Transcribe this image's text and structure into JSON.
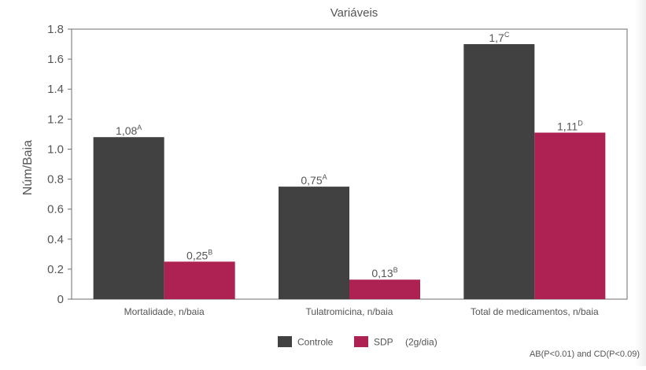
{
  "chart_data": {
    "type": "bar",
    "title": "Variáveis",
    "ylabel": "Núm/Baia",
    "xlabel": "",
    "ylim": [
      0,
      1.8
    ],
    "yticks": [
      "0",
      "0.2",
      "0.4",
      "0.6",
      "0.8",
      "1.0",
      "1.2",
      "1.4",
      "1.6",
      "1.8"
    ],
    "grid": false,
    "legend_position": "bottom-center",
    "categories": [
      "Mortalidade, n/baia",
      "Tulatromicina, n/baia",
      "Total de medicamentos, n/baia"
    ],
    "series": [
      {
        "name": "Controle",
        "color": "#414141",
        "values": [
          1.08,
          0.75,
          1.7
        ],
        "labels": [
          "1,08",
          "0,75",
          "1,7"
        ],
        "superscripts": [
          "A",
          "A",
          "C"
        ]
      },
      {
        "name": "SDP",
        "legend_suffix": "(2g/dia)",
        "color": "#ae2253",
        "values": [
          0.25,
          0.13,
          1.11
        ],
        "labels": [
          "0,25",
          "0,13",
          "1,11"
        ],
        "superscripts": [
          "B",
          "B",
          "D"
        ]
      }
    ],
    "footnote": "AB(P<0.01) and CD(P<0.09)"
  }
}
